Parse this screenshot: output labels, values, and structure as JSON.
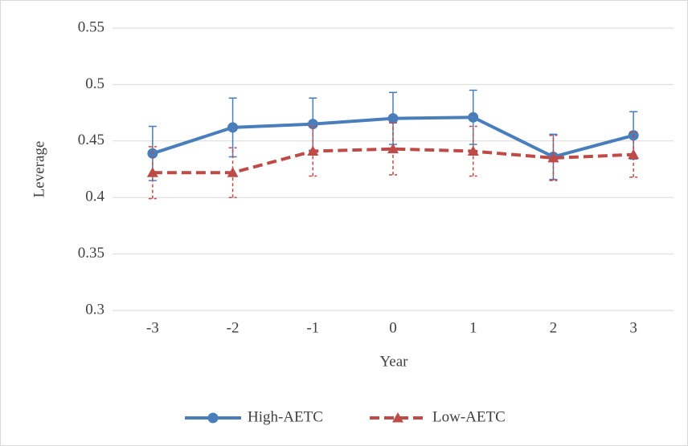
{
  "chart_data": {
    "type": "line",
    "x_label": "Year",
    "y_label": "Leverage",
    "categories": [
      "-3",
      "-2",
      "-1",
      "0",
      "1",
      "2",
      "3"
    ],
    "series": [
      {
        "name": "High-AETC",
        "color": "#4a7ebb",
        "marker": "circle",
        "line_style": "solid",
        "values": [
          0.439,
          0.462,
          0.465,
          0.47,
          0.471,
          0.436,
          0.455
        ],
        "errors": [
          0.024,
          0.026,
          0.023,
          0.023,
          0.024,
          0.02,
          0.021
        ]
      },
      {
        "name": "Low-AETC",
        "color": "#be4b48",
        "marker": "triangle",
        "line_style": "dashed",
        "values": [
          0.422,
          0.422,
          0.441,
          0.443,
          0.441,
          0.435,
          0.438
        ],
        "errors": [
          0.023,
          0.022,
          0.022,
          0.023,
          0.022,
          0.02,
          0.02
        ]
      }
    ],
    "ylim": [
      0.3,
      0.55
    ],
    "yticks": [
      0.3,
      0.35,
      0.4,
      0.45,
      0.5,
      0.55
    ],
    "grid": true,
    "legend": "bottom"
  }
}
